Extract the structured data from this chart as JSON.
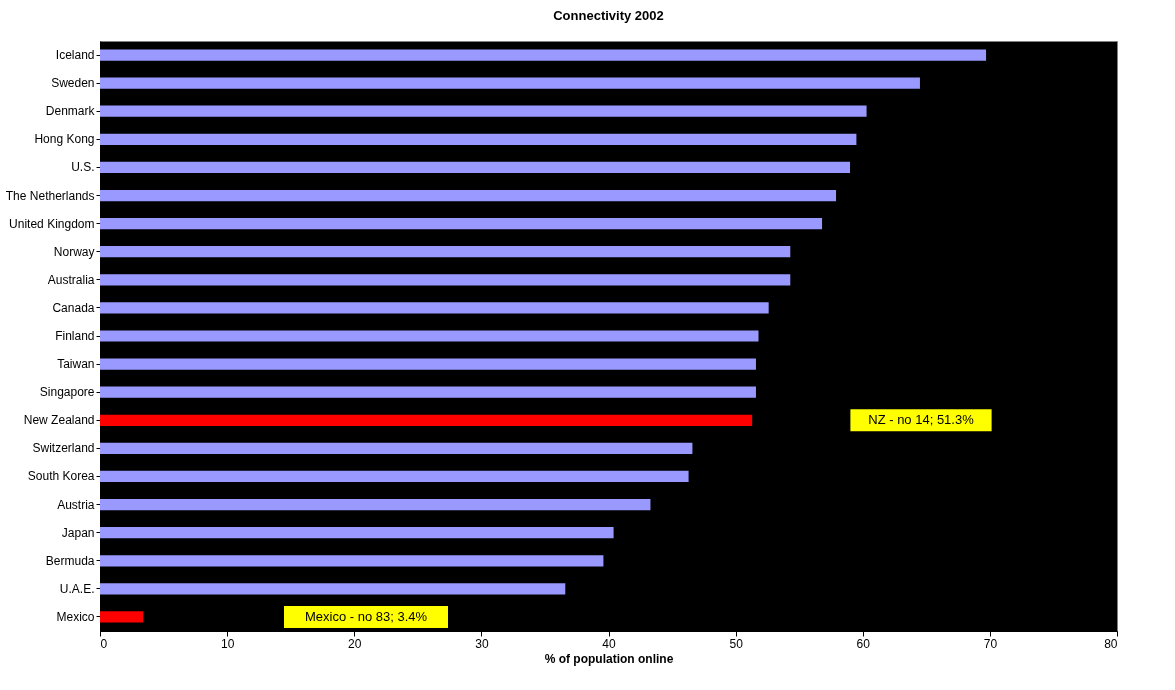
{
  "chart_data": {
    "type": "bar",
    "orientation": "horizontal",
    "title": "Connectivity 2002",
    "xlabel": "% of population online",
    "categories": [
      "Iceland",
      "Sweden",
      "Denmark",
      "Hong Kong",
      "U.S.",
      "The Netherlands",
      "United Kingdom",
      "Norway",
      "Australia",
      "Canada",
      "Finland",
      "Taiwan",
      "Singapore",
      "New Zealand",
      "Switzerland",
      "South Korea",
      "Austria",
      "Japan",
      "Bermuda",
      "U.A.E.",
      "Mexico"
    ],
    "values": [
      69.7,
      64.5,
      60.3,
      59.5,
      59.0,
      57.9,
      56.8,
      54.3,
      54.3,
      52.6,
      51.8,
      51.6,
      51.6,
      51.3,
      46.6,
      46.3,
      43.3,
      40.4,
      39.6,
      36.6,
      3.4
    ],
    "colors": [
      "#9999ff",
      "#9999ff",
      "#9999ff",
      "#9999ff",
      "#9999ff",
      "#9999ff",
      "#9999ff",
      "#9999ff",
      "#9999ff",
      "#9999ff",
      "#9999ff",
      "#9999ff",
      "#9999ff",
      "#ff0000",
      "#9999ff",
      "#9999ff",
      "#9999ff",
      "#9999ff",
      "#9999ff",
      "#9999ff",
      "#ff0000"
    ],
    "xlim": [
      0,
      80
    ],
    "xticks": [
      0,
      10,
      20,
      30,
      40,
      50,
      60,
      70,
      80
    ],
    "grid": false,
    "annotations": [
      "NZ - no 14; 51.3%",
      "Mexico - no 83; 3.4%"
    ]
  }
}
